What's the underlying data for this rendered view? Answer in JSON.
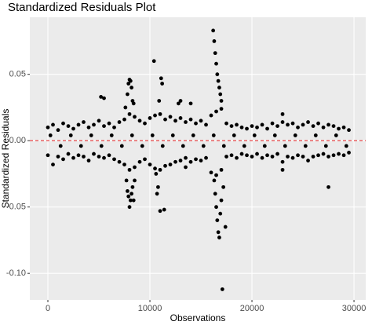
{
  "chart_data": {
    "type": "scatter",
    "title": "Standardized Residuals Plot",
    "x_label": "Observations",
    "y_label": "Standardized Residuals",
    "xlim": [
      -1770,
      31150
    ],
    "ylim": [
      -0.12,
      0.093
    ],
    "xticks": [
      0,
      10000,
      20000,
      30000
    ],
    "yticks": [
      {
        "value": -0.1,
        "label": "-0.10"
      },
      -0.05,
      {
        "value": 0,
        "label": "0.00"
      },
      0.05
    ],
    "grid": true,
    "color": "#000000",
    "hline": 0,
    "hline_color": "#e41a1c",
    "x": [
      0,
      500,
      1000,
      1500,
      2000,
      2500,
      3000,
      3500,
      4000,
      4500,
      5000,
      5500,
      6000,
      6500,
      7000,
      7500,
      8000,
      8500,
      9000,
      9500,
      10000,
      10500,
      11000,
      11500,
      12000,
      12500,
      13000,
      13500,
      14000,
      14500,
      15000,
      15500,
      16000,
      16500,
      17000,
      17500,
      18000,
      18500,
      19000,
      19500,
      20000,
      20500,
      21000,
      21500,
      22000,
      22500,
      23000,
      23500,
      24000,
      24500,
      25000,
      25500,
      26000,
      26500,
      27000,
      27500,
      28000,
      28500,
      29000,
      29500,
      0,
      500,
      1000,
      1500,
      2000,
      2500,
      3000,
      3500,
      4000,
      4500,
      5000,
      5500,
      6000,
      6500,
      7000,
      7500,
      8000,
      8500,
      9000,
      9500,
      10000,
      10500,
      11000,
      11500,
      12000,
      12500,
      13000,
      13500,
      14000,
      14500,
      15000,
      15500,
      16000,
      16500,
      17000,
      17500,
      18000,
      18500,
      19000,
      19500,
      20000,
      20500,
      21000,
      21500,
      22000,
      22500,
      23000,
      23500,
      24000,
      24500,
      25000,
      25500,
      26000,
      26500,
      27000,
      27500,
      28000,
      28500,
      29000,
      29500,
      250,
      1250,
      2250,
      3250,
      4250,
      5250,
      6250,
      7250,
      8250,
      9250,
      10250,
      11250,
      12250,
      13250,
      14250,
      15250,
      16250,
      17250,
      18250,
      19250,
      20250,
      21250,
      22250,
      23250,
      24250,
      25250,
      26250,
      27250,
      28250,
      29250,
      5200,
      5500,
      7600,
      7800,
      7900,
      8000,
      8100,
      8200,
      8300,
      8400,
      7700,
      7800,
      7900,
      8000,
      8100,
      8200,
      8300,
      8400,
      8500,
      10400,
      10900,
      11100,
      11200,
      10600,
      10800,
      11000,
      11400,
      10700,
      12800,
      13000,
      14000,
      13500,
      16200,
      16300,
      16400,
      16500,
      16600,
      16700,
      16800,
      16900,
      17000,
      16300,
      16400,
      16500,
      16600,
      16700,
      16800,
      16900,
      17000,
      17100,
      17400,
      17200,
      23000,
      23000,
      27500
    ],
    "y": [
      0.01,
      0.012,
      0.008,
      0.013,
      0.011,
      0.009,
      0.012,
      0.014,
      0.01,
      0.012,
      0.015,
      0.011,
      0.013,
      0.01,
      0.014,
      0.016,
      0.02,
      0.018,
      0.015,
      0.013,
      0.017,
      0.019,
      0.02,
      0.016,
      0.018,
      0.015,
      0.017,
      0.014,
      0.016,
      0.013,
      0.015,
      0.012,
      0.019,
      0.022,
      0.024,
      0.013,
      0.011,
      0.012,
      0.01,
      0.009,
      0.011,
      0.01,
      0.012,
      0.009,
      0.013,
      0.011,
      0.014,
      0.012,
      0.013,
      0.01,
      0.012,
      0.014,
      0.011,
      0.013,
      0.01,
      0.012,
      0.011,
      0.009,
      0.01,
      0.008,
      -0.011,
      -0.018,
      -0.012,
      -0.014,
      -0.01,
      -0.013,
      -0.011,
      -0.012,
      -0.015,
      -0.01,
      -0.012,
      -0.013,
      -0.011,
      -0.014,
      -0.016,
      -0.018,
      -0.022,
      -0.02,
      -0.016,
      -0.014,
      -0.018,
      -0.021,
      -0.022,
      -0.019,
      -0.018,
      -0.016,
      -0.015,
      -0.013,
      -0.016,
      -0.014,
      -0.015,
      -0.013,
      -0.024,
      -0.026,
      -0.022,
      -0.012,
      -0.011,
      -0.013,
      -0.01,
      -0.011,
      -0.012,
      -0.01,
      -0.013,
      -0.011,
      -0.012,
      -0.01,
      -0.016,
      -0.012,
      -0.013,
      -0.011,
      -0.012,
      -0.015,
      -0.012,
      -0.011,
      -0.01,
      -0.012,
      -0.011,
      -0.01,
      -0.011,
      -0.009,
      0.004,
      -0.004,
      0.004,
      -0.004,
      0.004,
      -0.004,
      0.004,
      -0.004,
      0.004,
      -0.004,
      0.004,
      -0.004,
      0.004,
      -0.004,
      0.004,
      -0.004,
      0.004,
      -0.004,
      0.004,
      -0.004,
      0.004,
      -0.004,
      0.004,
      -0.004,
      0.004,
      -0.004,
      0.004,
      -0.004,
      0.004,
      -0.004,
      0.033,
      0.032,
      0.025,
      0.035,
      0.043,
      0.046,
      0.045,
      0.04,
      0.03,
      0.028,
      -0.03,
      -0.038,
      -0.042,
      -0.05,
      -0.045,
      -0.04,
      -0.035,
      -0.045,
      -0.03,
      0.06,
      0.03,
      0.047,
      0.043,
      -0.025,
      -0.035,
      -0.053,
      -0.052,
      -0.04,
      0.028,
      0.03,
      0.028,
      -0.02,
      0.083,
      0.075,
      0.066,
      0.058,
      0.05,
      0.045,
      0.04,
      0.035,
      0.03,
      -0.03,
      -0.04,
      -0.05,
      -0.06,
      -0.069,
      -0.073,
      -0.055,
      -0.045,
      -0.112,
      -0.065,
      -0.035,
      0.02,
      -0.022,
      -0.035
    ]
  }
}
